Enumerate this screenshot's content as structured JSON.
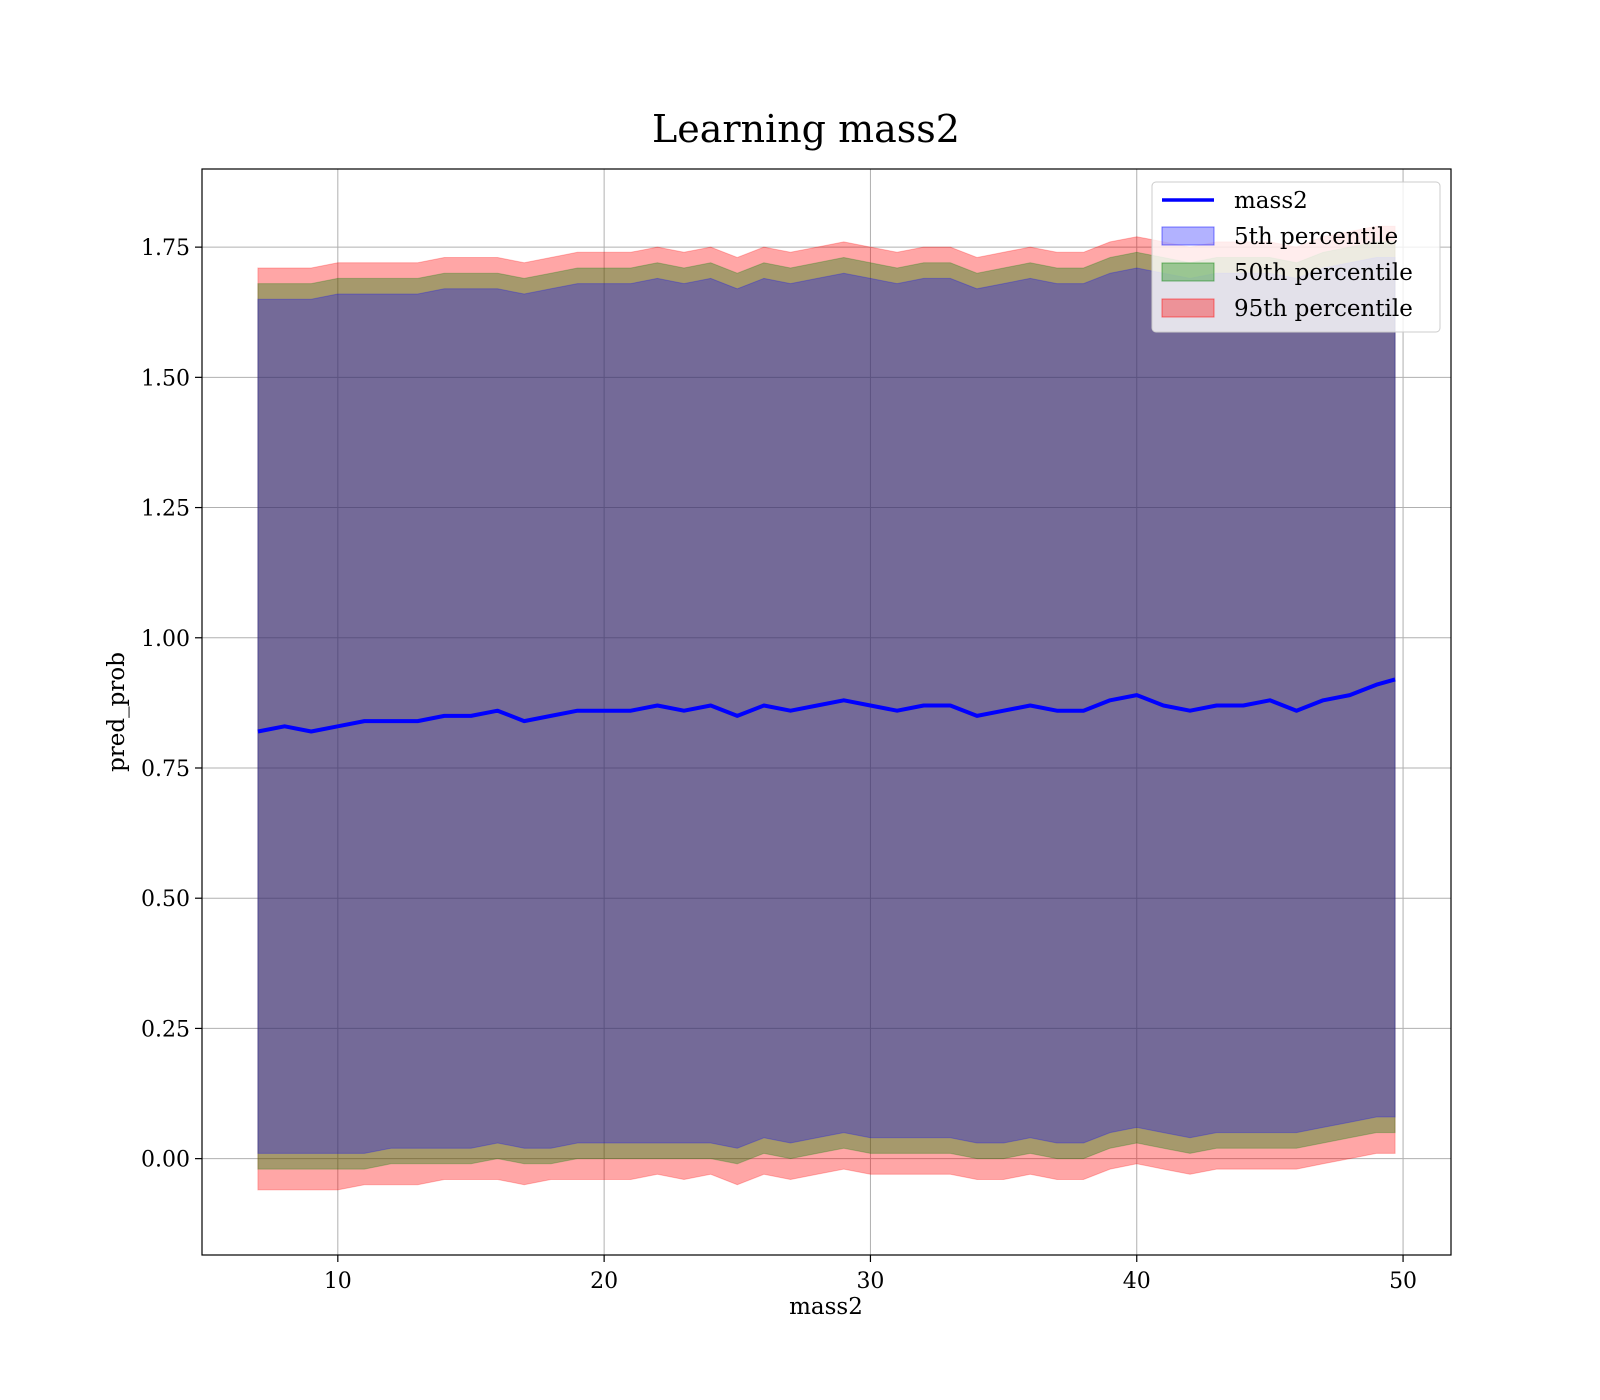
{
  "chart_data": {
    "type": "line",
    "title": "Learning mass2",
    "xlabel": "mass2",
    "ylabel": "pred_prob",
    "xlim": [
      4.9,
      51.8
    ],
    "ylim": [
      -0.185,
      1.9
    ],
    "xticks": [
      10,
      20,
      30,
      40,
      50
    ],
    "yticks": [
      0.0,
      0.25,
      0.5,
      0.75,
      1.0,
      1.25,
      1.5,
      1.75
    ],
    "ytick_labels": [
      "0.00",
      "0.25",
      "0.50",
      "0.75",
      "1.00",
      "1.25",
      "1.50",
      "1.75"
    ],
    "grid": true,
    "legend_position": "top-right",
    "x": [
      7.0,
      8.0,
      9.0,
      10.0,
      11.0,
      12.0,
      13.0,
      14.0,
      15.0,
      16.0,
      17.0,
      18.0,
      19.0,
      20.0,
      21.0,
      22.0,
      23.0,
      24.0,
      25.0,
      26.0,
      27.0,
      28.0,
      29.0,
      30.0,
      31.0,
      32.0,
      33.0,
      34.0,
      35.0,
      36.0,
      37.0,
      38.0,
      39.0,
      40.0,
      41.0,
      42.0,
      43.0,
      44.0,
      45.0,
      46.0,
      47.0,
      48.0,
      49.0,
      49.7
    ],
    "series": [
      {
        "name": "mass2",
        "kind": "line",
        "color": "#0000ff",
        "values": [
          0.82,
          0.83,
          0.82,
          0.83,
          0.84,
          0.84,
          0.84,
          0.85,
          0.85,
          0.86,
          0.84,
          0.85,
          0.86,
          0.86,
          0.86,
          0.87,
          0.86,
          0.87,
          0.85,
          0.87,
          0.86,
          0.87,
          0.88,
          0.87,
          0.86,
          0.87,
          0.87,
          0.85,
          0.86,
          0.87,
          0.86,
          0.86,
          0.88,
          0.89,
          0.87,
          0.86,
          0.87,
          0.87,
          0.88,
          0.86,
          0.88,
          0.89,
          0.91,
          0.92
        ]
      },
      {
        "name": "5th percentile",
        "kind": "band",
        "color": "#0000ff",
        "lower": [
          0.01,
          0.01,
          0.01,
          0.01,
          0.01,
          0.02,
          0.02,
          0.02,
          0.02,
          0.03,
          0.02,
          0.02,
          0.03,
          0.03,
          0.03,
          0.03,
          0.03,
          0.03,
          0.02,
          0.04,
          0.03,
          0.04,
          0.05,
          0.04,
          0.04,
          0.04,
          0.04,
          0.03,
          0.03,
          0.04,
          0.03,
          0.03,
          0.05,
          0.06,
          0.05,
          0.04,
          0.05,
          0.05,
          0.05,
          0.05,
          0.06,
          0.07,
          0.08,
          0.08
        ],
        "upper": [
          1.65,
          1.65,
          1.65,
          1.66,
          1.66,
          1.66,
          1.66,
          1.67,
          1.67,
          1.67,
          1.66,
          1.67,
          1.68,
          1.68,
          1.68,
          1.69,
          1.68,
          1.69,
          1.67,
          1.69,
          1.68,
          1.69,
          1.7,
          1.69,
          1.68,
          1.69,
          1.69,
          1.67,
          1.68,
          1.69,
          1.68,
          1.68,
          1.7,
          1.71,
          1.7,
          1.69,
          1.7,
          1.7,
          1.7,
          1.69,
          1.71,
          1.72,
          1.73,
          1.73
        ]
      },
      {
        "name": "50th percentile",
        "kind": "band",
        "color": "#008000",
        "lower": [
          -0.02,
          -0.02,
          -0.02,
          -0.02,
          -0.02,
          -0.01,
          -0.01,
          -0.01,
          -0.01,
          0.0,
          -0.01,
          -0.01,
          0.0,
          0.0,
          0.0,
          0.0,
          0.0,
          0.0,
          -0.01,
          0.01,
          0.0,
          0.01,
          0.02,
          0.01,
          0.01,
          0.01,
          0.01,
          0.0,
          0.0,
          0.01,
          0.0,
          0.0,
          0.02,
          0.03,
          0.02,
          0.01,
          0.02,
          0.02,
          0.02,
          0.02,
          0.03,
          0.04,
          0.05,
          0.05
        ],
        "upper": [
          1.68,
          1.68,
          1.68,
          1.69,
          1.69,
          1.69,
          1.69,
          1.7,
          1.7,
          1.7,
          1.69,
          1.7,
          1.71,
          1.71,
          1.71,
          1.72,
          1.71,
          1.72,
          1.7,
          1.72,
          1.71,
          1.72,
          1.73,
          1.72,
          1.71,
          1.72,
          1.72,
          1.7,
          1.71,
          1.72,
          1.71,
          1.71,
          1.73,
          1.74,
          1.73,
          1.72,
          1.73,
          1.73,
          1.73,
          1.72,
          1.74,
          1.75,
          1.76,
          1.76
        ]
      },
      {
        "name": "95th percentile",
        "kind": "band",
        "color": "#ff0000",
        "lower": [
          -0.06,
          -0.06,
          -0.06,
          -0.06,
          -0.05,
          -0.05,
          -0.05,
          -0.04,
          -0.04,
          -0.04,
          -0.05,
          -0.04,
          -0.04,
          -0.04,
          -0.04,
          -0.03,
          -0.04,
          -0.03,
          -0.05,
          -0.03,
          -0.04,
          -0.03,
          -0.02,
          -0.03,
          -0.03,
          -0.03,
          -0.03,
          -0.04,
          -0.04,
          -0.03,
          -0.04,
          -0.04,
          -0.02,
          -0.01,
          -0.02,
          -0.03,
          -0.02,
          -0.02,
          -0.02,
          -0.02,
          -0.01,
          0.0,
          0.01,
          0.01
        ],
        "upper": [
          1.71,
          1.71,
          1.71,
          1.72,
          1.72,
          1.72,
          1.72,
          1.73,
          1.73,
          1.73,
          1.72,
          1.73,
          1.74,
          1.74,
          1.74,
          1.75,
          1.74,
          1.75,
          1.73,
          1.75,
          1.74,
          1.75,
          1.76,
          1.75,
          1.74,
          1.75,
          1.75,
          1.73,
          1.74,
          1.75,
          1.74,
          1.74,
          1.76,
          1.77,
          1.76,
          1.75,
          1.76,
          1.76,
          1.76,
          1.75,
          1.77,
          1.78,
          1.79,
          1.79
        ]
      }
    ]
  }
}
